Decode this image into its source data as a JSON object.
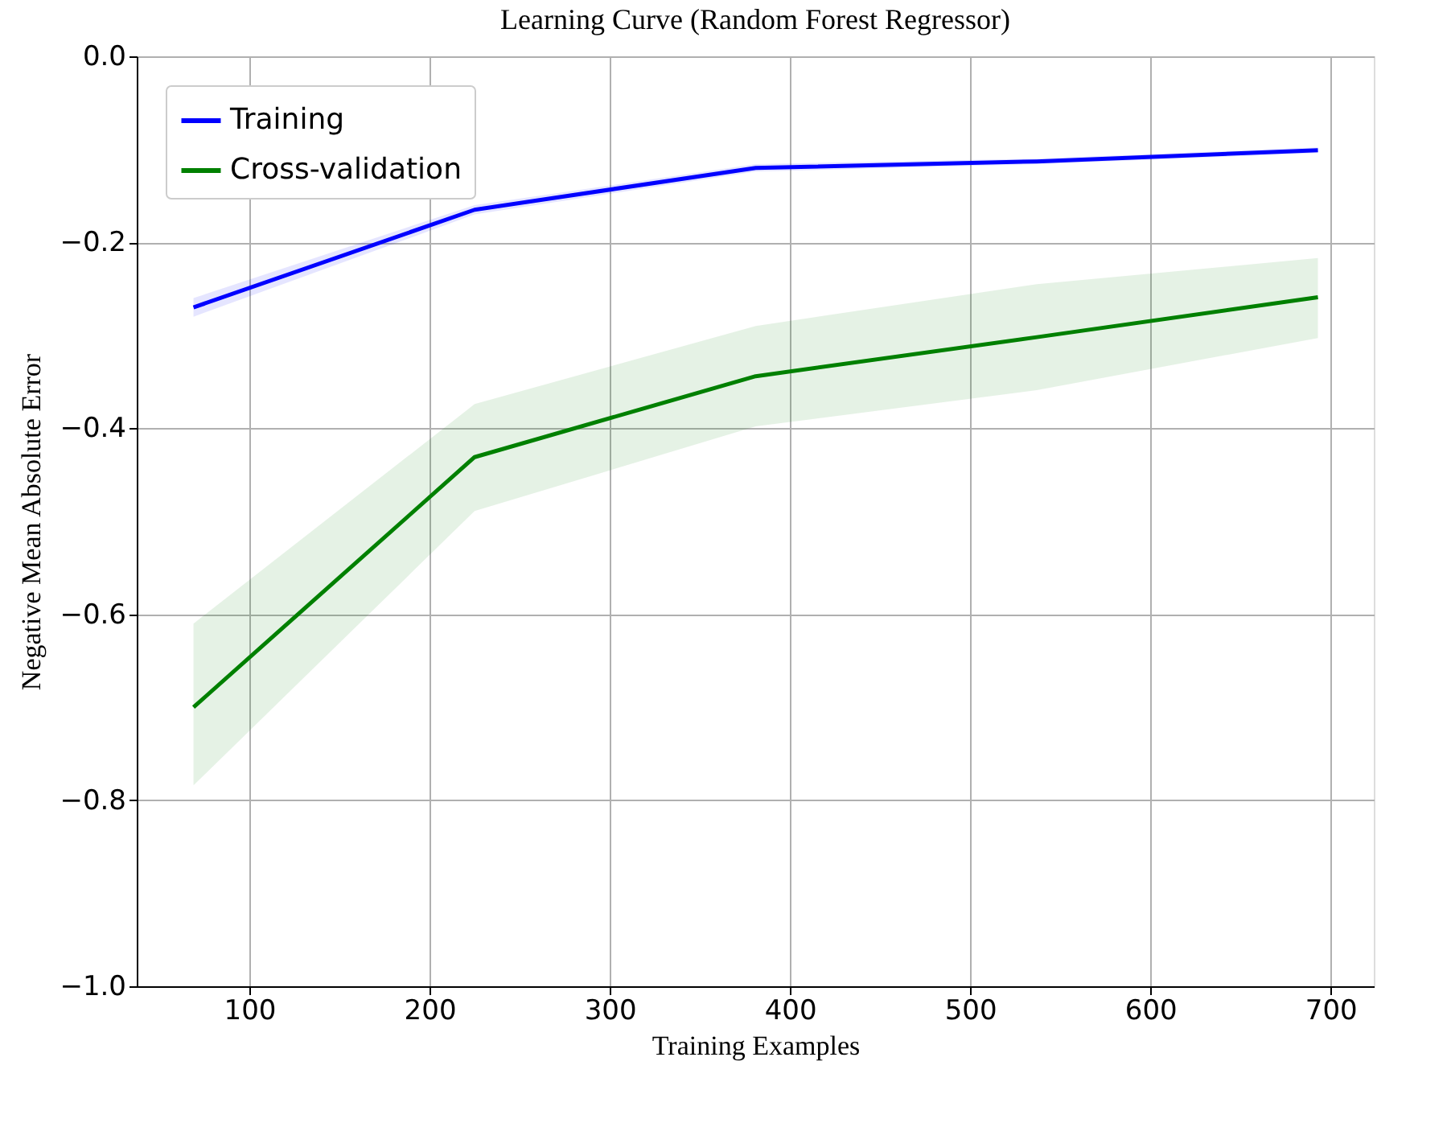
{
  "chart_data": {
    "type": "line",
    "title": "Learning Curve (Random Forest Regressor)",
    "xlabel": "Training Examples",
    "ylabel": "Negative Mean Absolute Error",
    "x": [
      69,
      225,
      381,
      537,
      693
    ],
    "series": [
      {
        "name": "Training",
        "color": "#0000ff",
        "values": [
          -0.27,
          -0.165,
          -0.12,
          -0.113,
          -0.101
        ],
        "lower": [
          -0.28,
          -0.17,
          -0.124,
          -0.116,
          -0.104
        ],
        "upper": [
          -0.26,
          -0.16,
          -0.116,
          -0.11,
          -0.098
        ]
      },
      {
        "name": "Cross-validation",
        "color": "#008000",
        "values": [
          -0.7,
          -0.431,
          -0.344,
          -0.302,
          -0.259
        ],
        "lower": [
          -0.784,
          -0.489,
          -0.398,
          -0.359,
          -0.303
        ],
        "upper": [
          -0.61,
          -0.374,
          -0.29,
          -0.245,
          -0.217
        ]
      }
    ],
    "xlim": [
      37.5,
      724
    ],
    "xticks": [
      100,
      200,
      300,
      400,
      500,
      600,
      700
    ],
    "ylim": [
      -1.0,
      0.0
    ],
    "yticks": [
      {
        "value": -1.0,
        "label": "−1.0"
      },
      {
        "value": -0.8,
        "label": "−0.8"
      },
      {
        "value": -0.6,
        "label": "−0.6"
      },
      {
        "value": -0.4,
        "label": "−0.4"
      },
      {
        "value": -0.2,
        "label": "−0.2"
      },
      {
        "value": 0.0,
        "label": "0.0"
      }
    ],
    "grid": true,
    "legend": "top left",
    "marker": "none",
    "line_style": "solid"
  }
}
